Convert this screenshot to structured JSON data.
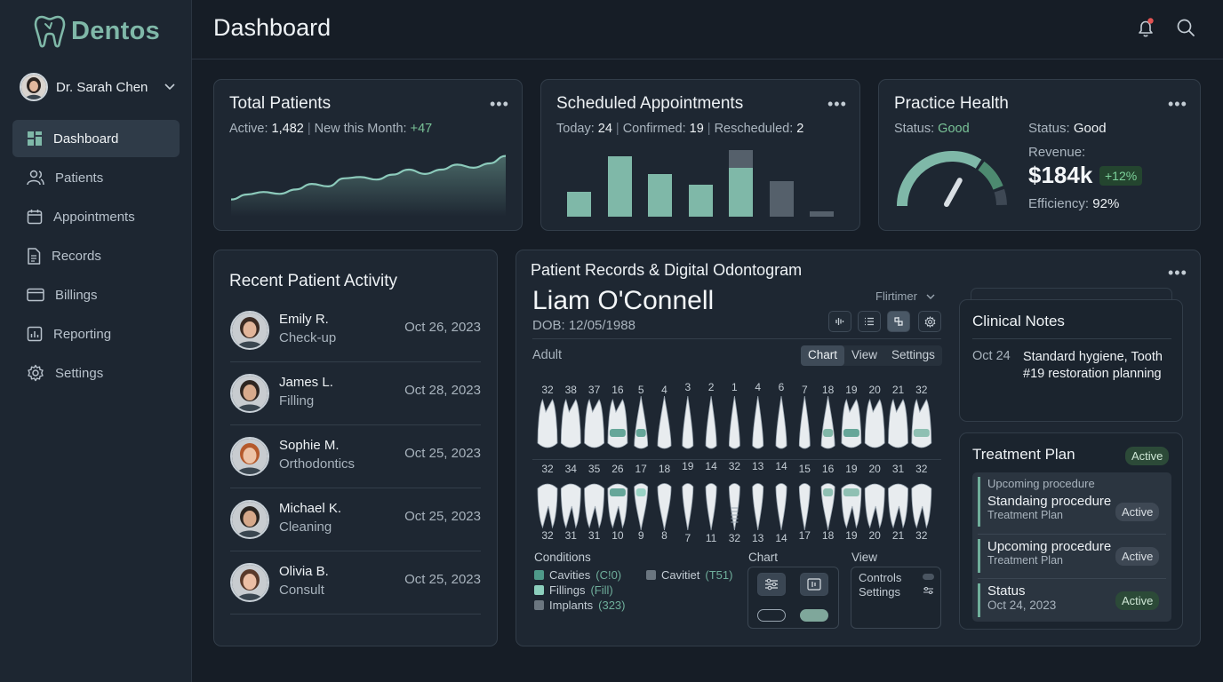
{
  "app": {
    "name": "Dentos",
    "user": "Dr. Sarah Chen"
  },
  "sidebar": {
    "items": [
      {
        "label": "Dashboard",
        "icon": "grid-icon",
        "active": true
      },
      {
        "label": "Patients",
        "icon": "users-icon"
      },
      {
        "label": "Appointments",
        "icon": "calendar-icon"
      },
      {
        "label": "Records",
        "icon": "document-icon"
      },
      {
        "label": "Billings",
        "icon": "card-icon"
      },
      {
        "label": "Reporting",
        "icon": "chart-icon"
      },
      {
        "label": "Settings",
        "icon": "gear-icon"
      }
    ]
  },
  "header": {
    "title": "Dashboard"
  },
  "total_patients": {
    "title": "Total Patients",
    "active_label": "Active:",
    "active_value": "1,482",
    "new_label": "New this Month:",
    "new_value": "+47",
    "trend": [
      22,
      30,
      34,
      31,
      38,
      47,
      43,
      56,
      58,
      54,
      62,
      70,
      63,
      70,
      78,
      73,
      80,
      92
    ]
  },
  "appointments": {
    "title": "Scheduled Appointments",
    "today_label": "Today:",
    "today_value": "24",
    "confirmed_label": "Confirmed:",
    "confirmed_value": "19",
    "rescheduled_label": "Rescheduled:",
    "rescheduled_value": "2",
    "bars": [
      {
        "value": 28,
        "extra": 0,
        "color": "#7fb8a8"
      },
      {
        "value": 68,
        "extra": 0,
        "color": "#7fb8a8"
      },
      {
        "value": 48,
        "extra": 0,
        "color": "#7fb8a8"
      },
      {
        "value": 36,
        "extra": 0,
        "color": "#7fb8a8"
      },
      {
        "value": 55,
        "extra": 20,
        "color": "#7fb8a8"
      },
      {
        "value": 40,
        "extra": 0,
        "color": "#55606b"
      },
      {
        "value": 6,
        "extra": 0,
        "color": "#55606b"
      }
    ]
  },
  "health": {
    "title": "Practice Health",
    "status_label": "Status:",
    "status_value": "Good",
    "revenue_label": "Revenue:",
    "revenue_value": "$184k",
    "revenue_change": "+12%",
    "efficiency_label": "Efficiency:",
    "efficiency_value": "92%",
    "gauge_level": 0.68
  },
  "activity": {
    "title": "Recent Patient Activity",
    "rows": [
      {
        "name": "Emily R.",
        "procedure": "Check-up",
        "date": "Oct 26, 2023",
        "hair": "#3b2a22",
        "skin": "#e2b59a"
      },
      {
        "name": "James L.",
        "procedure": "Filling",
        "date": "Oct 28, 2023",
        "hair": "#2e2520",
        "skin": "#d8aa8c"
      },
      {
        "name": "Sophie M.",
        "procedure": "Orthodontics",
        "date": "Oct 25, 2023",
        "hair": "#b55a2c",
        "skin": "#edc3a6"
      },
      {
        "name": "Michael K.",
        "procedure": "Cleaning",
        "date": "Oct 25, 2023",
        "hair": "#2a2420",
        "skin": "#d6a88a"
      },
      {
        "name": "Olivia B.",
        "procedure": "Consult",
        "date": "Oct 25, 2023",
        "hair": "#5a3a2a",
        "skin": "#ecbfa5"
      }
    ]
  },
  "odontogram": {
    "title": "Patient Records & Digital Odontogram",
    "patient": "Liam O'Connell",
    "dob": "DOB: 12/05/1988",
    "filter": "Flirtimer",
    "section": "Adult",
    "tabs": [
      "Chart",
      "View",
      "Settings"
    ],
    "upper_top_numbers": [
      "32",
      "38",
      "37",
      "16",
      "5",
      "4",
      "3",
      "2",
      "1",
      "4",
      "6",
      "7",
      "18",
      "19",
      "20",
      "21",
      "32"
    ],
    "upper_bottom_numbers": [
      "32",
      "34",
      "35",
      "26",
      "17",
      "18",
      "19",
      "14",
      "32",
      "13",
      "14",
      "15",
      "16",
      "19",
      "20",
      "31",
      "32"
    ],
    "lower_bottom_numbers": [
      "32",
      "31",
      "31",
      "10",
      "9",
      "8",
      "7",
      "11",
      "32",
      "13",
      "14",
      "17",
      "18",
      "19",
      "20",
      "21",
      "32"
    ],
    "conditions_title": "Conditions",
    "legend": [
      {
        "label": "Cavities",
        "code": "(C!0)",
        "color": "#4f9a8a"
      },
      {
        "label": "Fillings",
        "code": "(Fill)",
        "color": "#8ccfbd"
      },
      {
        "label": "Implants",
        "code": "(323)",
        "color": "#6b7680"
      },
      {
        "label": "Cavitiet",
        "code": "(T51)",
        "color": "#6b7680"
      }
    ],
    "chart_label": "Chart",
    "view_label": "View",
    "controls_label": "Controls",
    "settings_label": "Settings"
  },
  "notes": {
    "title": "Clinical Notes",
    "date": "Oct 24",
    "text": "Standard hygiene, Tooth #19 restoration planning"
  },
  "treatment": {
    "title": "Treatment Plan",
    "badge": "Active",
    "items": [
      {
        "small": "Upcoming procedure",
        "big": "Standaing procedure",
        "sub": "Treatment Plan",
        "badge": "Active"
      },
      {
        "big": "Upcoming procedure",
        "sub": "Treatment Plan",
        "badge": "Active"
      },
      {
        "big": "Status",
        "sub": "Oct 24, 2023",
        "badge": "Active"
      }
    ]
  }
}
